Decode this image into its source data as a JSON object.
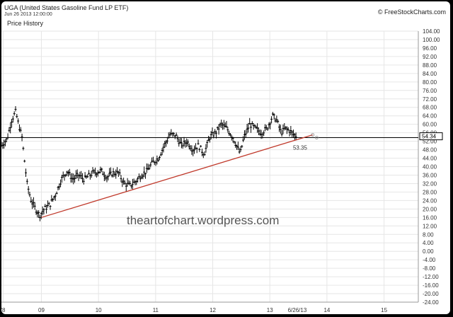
{
  "header": {
    "title": "UGA (United States Gasoline Fund LP ETF)",
    "date": "Jun 26 2013 12:00:00",
    "subtitle": "Price History",
    "copyright": "© FreeStockCharts.com"
  },
  "watermark": "theartofchart.wordpress.com",
  "chart_data": {
    "type": "bar",
    "ylim": [
      -24,
      104
    ],
    "y_ticks": [
      "104.00",
      "100.00",
      "96.00",
      "92.00",
      "88.00",
      "84.00",
      "80.00",
      "76.00",
      "72.00",
      "68.00",
      "64.00",
      "60.00",
      "56.00",
      "52.00",
      "48.00",
      "44.00",
      "40.00",
      "36.00",
      "32.00",
      "28.00",
      "24.00",
      "20.00",
      "16.00",
      "12.00",
      "8.00",
      "4.00",
      "0.00",
      "-4.00",
      "-8.00",
      "-12.00",
      "-16.00",
      "-20.00",
      "-24.00"
    ],
    "x_ticks": [
      "'8",
      "09",
      "10",
      "11",
      "12",
      "13",
      "6/26/13",
      "14",
      "15"
    ],
    "x_tick_dates": [
      2008.33,
      2009.0,
      2010.0,
      2011.0,
      2012.0,
      2013.0,
      2013.48,
      2014.0,
      2015.0
    ],
    "xlim": [
      2008.3,
      2015.6
    ],
    "price_path": [
      [
        2008.3,
        50
      ],
      [
        2008.4,
        53
      ],
      [
        2008.48,
        62
      ],
      [
        2008.55,
        66
      ],
      [
        2008.6,
        60
      ],
      [
        2008.66,
        54
      ],
      [
        2008.7,
        44
      ],
      [
        2008.75,
        32
      ],
      [
        2008.82,
        24
      ],
      [
        2008.9,
        20
      ],
      [
        2008.97,
        17
      ],
      [
        2009.05,
        20
      ],
      [
        2009.15,
        22
      ],
      [
        2009.25,
        27
      ],
      [
        2009.35,
        34
      ],
      [
        2009.45,
        38
      ],
      [
        2009.55,
        34
      ],
      [
        2009.65,
        36
      ],
      [
        2009.75,
        34
      ],
      [
        2009.9,
        37
      ],
      [
        2010.05,
        38
      ],
      [
        2010.15,
        35
      ],
      [
        2010.25,
        37
      ],
      [
        2010.35,
        37
      ],
      [
        2010.45,
        32
      ],
      [
        2010.55,
        31
      ],
      [
        2010.65,
        33
      ],
      [
        2010.75,
        36
      ],
      [
        2010.85,
        38
      ],
      [
        2010.95,
        42
      ],
      [
        2011.05,
        44
      ],
      [
        2011.15,
        50
      ],
      [
        2011.25,
        55
      ],
      [
        2011.35,
        55
      ],
      [
        2011.45,
        50
      ],
      [
        2011.55,
        52
      ],
      [
        2011.65,
        48
      ],
      [
        2011.75,
        50
      ],
      [
        2011.85,
        46
      ],
      [
        2011.95,
        54
      ],
      [
        2012.05,
        56
      ],
      [
        2012.15,
        60
      ],
      [
        2012.25,
        58
      ],
      [
        2012.35,
        54
      ],
      [
        2012.45,
        48
      ],
      [
        2012.48,
        46
      ],
      [
        2012.55,
        54
      ],
      [
        2012.65,
        60
      ],
      [
        2012.75,
        58
      ],
      [
        2012.85,
        56
      ],
      [
        2012.95,
        58
      ],
      [
        2013.05,
        64
      ],
      [
        2013.12,
        62
      ],
      [
        2013.2,
        56
      ],
      [
        2013.27,
        58
      ],
      [
        2013.35,
        57
      ],
      [
        2013.42,
        55
      ],
      [
        2013.48,
        54.34
      ]
    ],
    "last_price": "54.34",
    "horizontal_line": 53.7,
    "trendline": {
      "from": [
        2009.0,
        16.0
      ],
      "to": [
        2013.48,
        53.35
      ],
      "extend_to": [
        2013.75,
        55.0
      ],
      "label": "53.35"
    },
    "colors": {
      "price": "#000000",
      "trendline": "#c0392b",
      "horizontal": "#000000",
      "grid": "#e6e6e6"
    }
  }
}
